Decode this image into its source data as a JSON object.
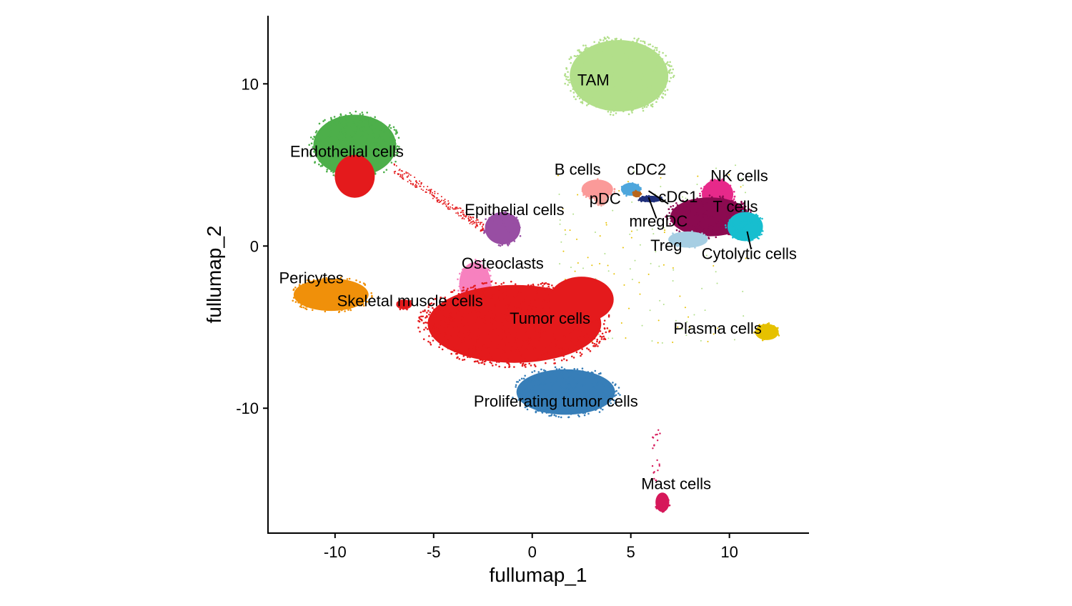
{
  "chart_data": {
    "type": "scatter",
    "title": "",
    "xlabel": "fullumap_1",
    "ylabel": "fullumap_2",
    "xlim": [
      -13.4,
      14.0
    ],
    "ylim": [
      -17.7,
      14.2
    ],
    "xticks": [
      -10,
      -5,
      0,
      5,
      10
    ],
    "yticks": [
      -10,
      0,
      10
    ],
    "grid": false,
    "legend": "none",
    "clusters": [
      {
        "name": "TAM",
        "color": "#b2df8a",
        "center": [
          4.4,
          10.5
        ],
        "spread": [
          2.5,
          2.2
        ],
        "label_at": [
          3.1,
          9.9
        ]
      },
      {
        "name": "Endothelial cells",
        "color": "#4daf4a",
        "center": [
          -9.0,
          6.2
        ],
        "spread": [
          2.1,
          1.9
        ],
        "label_at": [
          -9.4,
          5.5
        ]
      },
      {
        "name": "Epithelial cells",
        "color": "#984ea3",
        "center": [
          -1.5,
          1.1
        ],
        "spread": [
          0.9,
          1.0
        ],
        "label_at": [
          -0.9,
          1.9
        ]
      },
      {
        "name": "Osteoclasts",
        "color": "#f781bf",
        "center": [
          -2.9,
          -2.3
        ],
        "spread": [
          0.8,
          1.3
        ],
        "label_at": [
          -1.5,
          -1.4
        ]
      },
      {
        "name": "Pericytes",
        "color": "#f0900a",
        "center": [
          -10.2,
          -3.0
        ],
        "spread": [
          1.9,
          1.0
        ],
        "label_at": [
          -11.2,
          -2.3
        ]
      },
      {
        "name": "Skeletal muscle cells",
        "color": "#e41a1c",
        "center": [
          -6.5,
          -3.6
        ],
        "spread": [
          0.4,
          0.3
        ],
        "label_at": [
          -6.2,
          -3.7
        ]
      },
      {
        "name": "Tumor cells",
        "color": "#e41a1c",
        "center": [
          -0.9,
          -4.8
        ],
        "spread": [
          4.4,
          2.4
        ],
        "label_at": [
          0.9,
          -4.8
        ]
      },
      {
        "name": "Proliferating tumor cells",
        "color": "#377eb8",
        "center": [
          1.7,
          -9.0
        ],
        "spread": [
          2.5,
          1.4
        ],
        "label_at": [
          1.2,
          -9.9
        ]
      },
      {
        "name": "B cells",
        "color": "#fb9a99",
        "center": [
          3.3,
          3.5
        ],
        "spread": [
          0.8,
          0.6
        ],
        "label_at": [
          2.3,
          4.4
        ]
      },
      {
        "name": "pDC",
        "color": "#f4a6a0",
        "center": [
          3.5,
          2.8
        ],
        "spread": [
          0.3,
          0.3
        ],
        "label_at": [
          3.7,
          2.6
        ]
      },
      {
        "name": "cDC2",
        "color": "#4ea6dc",
        "center": [
          5.0,
          3.5
        ],
        "spread": [
          0.5,
          0.4
        ],
        "label_at": [
          5.8,
          4.4
        ]
      },
      {
        "name": "cDC1",
        "color": "#1f2f7a",
        "center": [
          6.0,
          2.9
        ],
        "spread": [
          0.6,
          0.2
        ],
        "label_at": [
          7.4,
          2.7
        ]
      },
      {
        "name": "mregDC",
        "color": "#b8651b",
        "center": [
          5.3,
          3.2
        ],
        "spread": [
          0.2,
          0.2
        ],
        "label_at": [
          6.4,
          1.2
        ]
      },
      {
        "name": "NK cells",
        "color": "#e7298a",
        "center": [
          9.4,
          3.2
        ],
        "spread": [
          0.8,
          0.9
        ],
        "label_at": [
          10.5,
          4.0
        ]
      },
      {
        "name": "T cells",
        "color": "#8b0a50",
        "center": [
          9.0,
          1.8
        ],
        "spread": [
          2.0,
          1.2
        ],
        "label_at": [
          10.3,
          2.1
        ]
      },
      {
        "name": "Treg",
        "color": "#a6cee3",
        "center": [
          7.9,
          0.4
        ],
        "spread": [
          1.0,
          0.5
        ],
        "label_at": [
          6.8,
          -0.3
        ]
      },
      {
        "name": "Cytolytic cells",
        "color": "#17becf",
        "center": [
          10.8,
          1.2
        ],
        "spread": [
          0.9,
          0.9
        ],
        "label_at": [
          11.0,
          -0.8
        ]
      },
      {
        "name": "Plasma cells",
        "color": "#e6c100",
        "center": [
          11.9,
          -5.3
        ],
        "spread": [
          0.6,
          0.5
        ],
        "label_at": [
          9.4,
          -5.4
        ]
      },
      {
        "name": "Mast cells",
        "color": "#d6185a",
        "center": [
          6.6,
          -15.8
        ],
        "spread": [
          0.35,
          0.6
        ],
        "label_at": [
          7.3,
          -15.0
        ]
      }
    ]
  }
}
